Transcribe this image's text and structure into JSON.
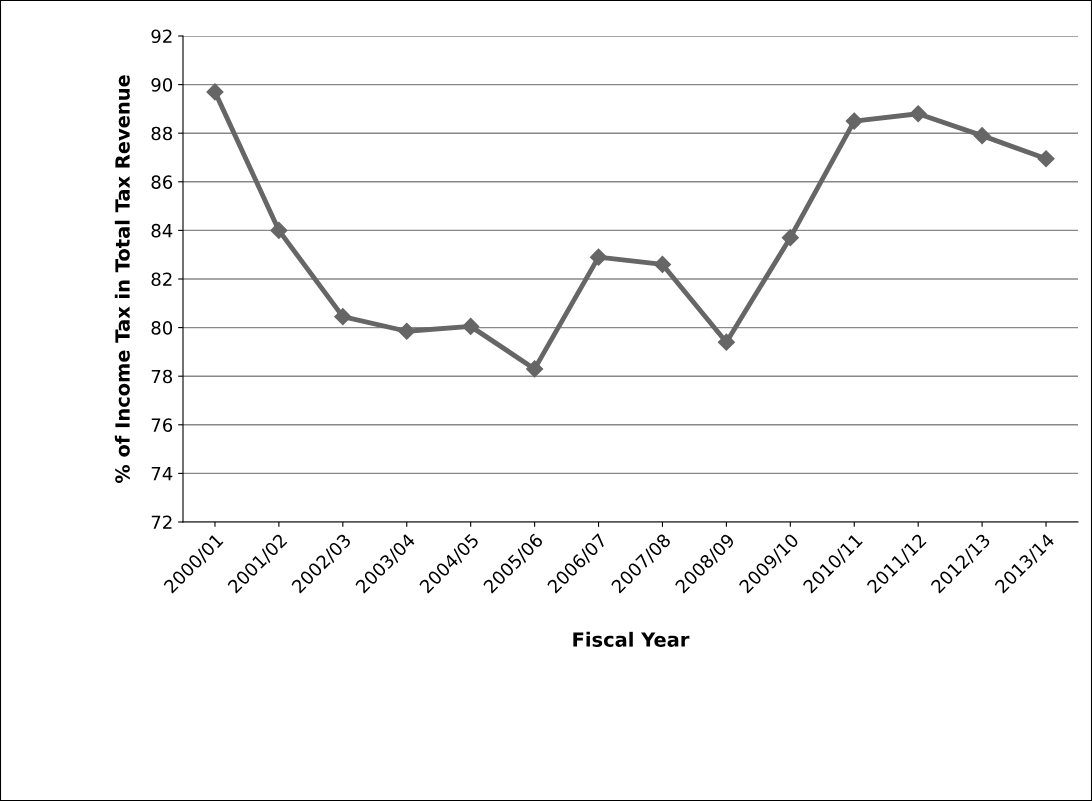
{
  "chart_data": {
    "type": "line",
    "xlabel": "Fiscal Year",
    "ylabel": "% of Income Tax in Total Tax Revenue",
    "categories": [
      "2000/01",
      "2001/02",
      "2002/03",
      "2003/04",
      "2004/05",
      "2005/06",
      "2006/07",
      "2007/08",
      "2008/09",
      "2009/10",
      "2010/11",
      "2011/12",
      "2012/13",
      "2013/14"
    ],
    "series": [
      {
        "color": "#666666",
        "values": [
          89.7,
          84.0,
          80.45,
          79.85,
          80.05,
          78.3,
          82.9,
          82.6,
          79.4,
          83.7,
          88.5,
          88.8,
          87.9,
          86.95
        ]
      }
    ],
    "ylim": [
      72,
      92
    ],
    "yticks": [
      72,
      74,
      76,
      78,
      80,
      82,
      84,
      86,
      88,
      90,
      92
    ],
    "grid": "y",
    "marker": "diamond",
    "line_style": "solid",
    "legend": false
  }
}
